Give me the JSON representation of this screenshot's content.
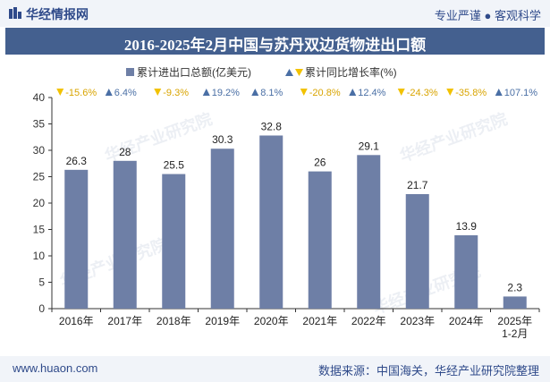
{
  "header": {
    "logo_text": "华经情报网",
    "tagline": "专业严谨 ● 客观科学"
  },
  "footer": {
    "website": "www.huaon.com",
    "source": "数据来源：中国海关，华经产业研究院整理"
  },
  "watermark": {
    "cn": "华经产业研究院",
    "url": "www.huaon.com"
  },
  "colors": {
    "bar": "#6e7fa6",
    "up": "#4a6fa5",
    "down": "#f2c200",
    "title_bg": "#44608f"
  },
  "chart_data": {
    "type": "bar",
    "title": "2016-2025年2月中国与苏丹双边货物进出口额",
    "legend": {
      "bar_label": "累计进出口总额(亿美元)",
      "rate_label": "累计同比增长率(%)",
      "placement": "top-center"
    },
    "categories": [
      "2016年",
      "2017年",
      "2018年",
      "2019年",
      "2020年",
      "2021年",
      "2022年",
      "2023年",
      "2024年",
      "2025年\n1-2月"
    ],
    "category_lines": [
      [
        "2016年"
      ],
      [
        "2017年"
      ],
      [
        "2018年"
      ],
      [
        "2019年"
      ],
      [
        "2020年"
      ],
      [
        "2021年"
      ],
      [
        "2022年"
      ],
      [
        "2023年"
      ],
      [
        "2024年"
      ],
      [
        "2025年",
        "1-2月"
      ]
    ],
    "series": [
      {
        "name": "累计进出口总额(亿美元)",
        "values": [
          26.3,
          28,
          25.5,
          30.3,
          32.8,
          26,
          29.1,
          21.7,
          13.9,
          2.3
        ]
      }
    ],
    "growth": [
      {
        "label": "-15.6%",
        "dir": "down"
      },
      {
        "label": "6.4%",
        "dir": "up"
      },
      {
        "label": "-9.3%",
        "dir": "down"
      },
      {
        "label": "19.2%",
        "dir": "up"
      },
      {
        "label": "8.1%",
        "dir": "up"
      },
      {
        "label": "-20.8%",
        "dir": "down"
      },
      {
        "label": "12.4%",
        "dir": "up"
      },
      {
        "label": "-24.3%",
        "dir": "down"
      },
      {
        "label": "-35.8%",
        "dir": "down"
      },
      {
        "label": "107.1%",
        "dir": "up"
      }
    ],
    "ylim": [
      0,
      40
    ],
    "yticks": [
      0,
      5,
      10,
      15,
      20,
      25,
      30,
      35,
      40
    ],
    "grid": false,
    "xlabel": "",
    "ylabel": ""
  }
}
